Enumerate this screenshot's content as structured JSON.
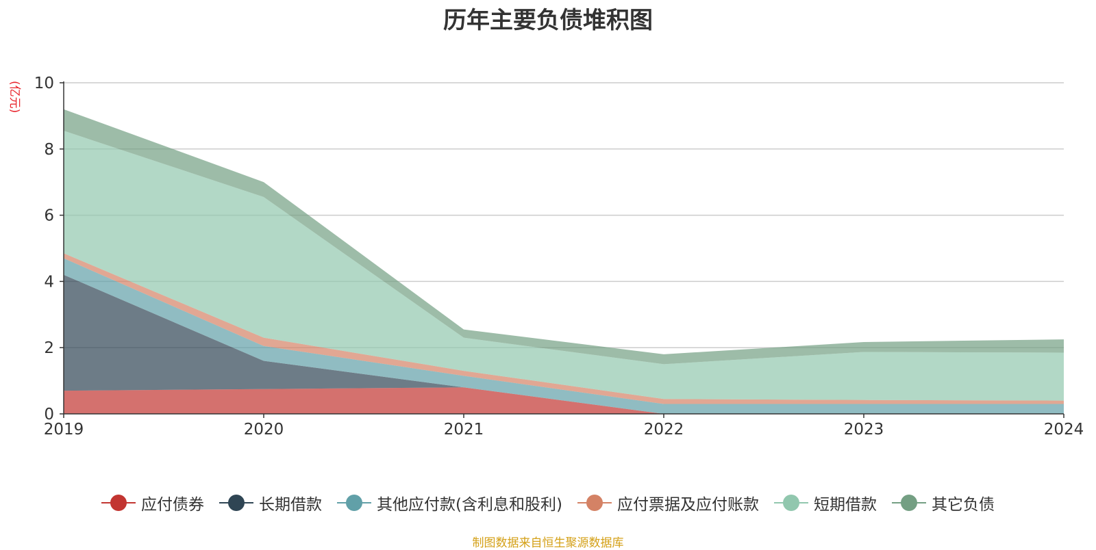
{
  "chart_data": {
    "type": "area",
    "stacked": true,
    "title": "历年主要负债堆积图",
    "ylabel": "(亿元)",
    "xlabel": "",
    "x": [
      "2019",
      "2020",
      "2021",
      "2022",
      "2023",
      "2024"
    ],
    "ylim": [
      0,
      10
    ],
    "yticks": [
      "0",
      "2",
      "4",
      "6",
      "8",
      "10"
    ],
    "grid": true,
    "legend_position": "bottom",
    "series": [
      {
        "name": "应付债券",
        "values": [
          0.7,
          0.75,
          0.8,
          0.0,
          0.0,
          0.0
        ],
        "color": "#c23531"
      },
      {
        "name": "长期借款",
        "values": [
          3.5,
          0.85,
          0.0,
          0.0,
          0.0,
          0.0
        ],
        "color": "#2f4554"
      },
      {
        "name": "其他应付款(含利息和股利)",
        "values": [
          0.5,
          0.45,
          0.35,
          0.3,
          0.3,
          0.3
        ],
        "color": "#61a0a8"
      },
      {
        "name": "应付票据及应付账款",
        "values": [
          0.15,
          0.25,
          0.15,
          0.15,
          0.12,
          0.1
        ],
        "color": "#d48265"
      },
      {
        "name": "短期借款",
        "values": [
          3.7,
          4.25,
          1.0,
          1.05,
          1.45,
          1.45
        ],
        "color": "#91c7ae"
      },
      {
        "name": "其它负债",
        "values": [
          0.65,
          0.45,
          0.25,
          0.3,
          0.3,
          0.4
        ],
        "color": "#749f83"
      }
    ]
  },
  "footer": {
    "source": "制图数据来自恒生聚源数据库"
  }
}
